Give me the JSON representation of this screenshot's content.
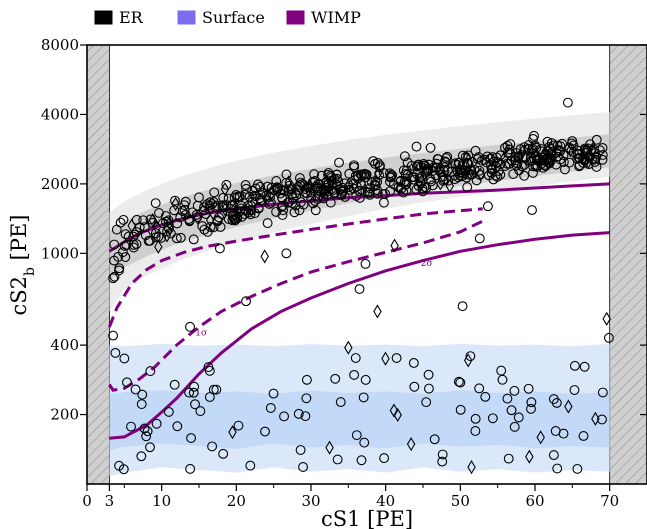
{
  "chart_data": {
    "type": "scatter",
    "xlabel": "cS1 [PE]",
    "ylabel_main": "cS2",
    "ylabel_sub": "b",
    "ylabel_unit": " [PE]",
    "xscale": "linear",
    "yscale": "log",
    "xlim": [
      0,
      75
    ],
    "ylim": [
      100,
      8000
    ],
    "x_ticks": [
      {
        "value": 0,
        "label": "0"
      },
      {
        "value": 3,
        "label": "3"
      },
      {
        "value": 10,
        "label": "10"
      },
      {
        "value": 20,
        "label": "20"
      },
      {
        "value": 30,
        "label": "30"
      },
      {
        "value": 40,
        "label": "40"
      },
      {
        "value": 50,
        "label": "50"
      },
      {
        "value": 60,
        "label": "60"
      },
      {
        "value": 70,
        "label": "70"
      }
    ],
    "y_ticks": [
      {
        "value": 200,
        "label": "200"
      },
      {
        "value": 400,
        "label": "400"
      },
      {
        "value": 1000,
        "label": "1000"
      },
      {
        "value": 2000,
        "label": "2000"
      },
      {
        "value": 4000,
        "label": "4000"
      },
      {
        "value": 8000,
        "label": "8000"
      }
    ],
    "excluded_regions": [
      [
        0,
        3
      ],
      [
        70,
        75
      ]
    ],
    "grid": false,
    "legend": {
      "placement": "top-left",
      "entries": [
        {
          "label": "ER",
          "color": "#000000"
        },
        {
          "label": "Surface",
          "color": "#7b6cf0"
        },
        {
          "label": "WIMP",
          "color": "#800080"
        }
      ]
    },
    "colors": {
      "er_band_outer": "#ececec",
      "er_band_inner": "#cfcfcf",
      "surface_band_outer": "#dbe8fa",
      "surface_band_inner": "#c2d9f7",
      "wimp": "#800080",
      "hatch": "#cfcfcf"
    },
    "er_band": {
      "x": [
        3,
        5,
        8,
        12,
        16,
        20,
        25,
        30,
        35,
        40,
        45,
        50,
        55,
        60,
        65,
        70
      ],
      "lo_outer": [
        560,
        700,
        800,
        920,
        1020,
        1110,
        1230,
        1340,
        1450,
        1560,
        1660,
        1760,
        1860,
        1950,
        2050,
        2150
      ],
      "lo_inner": [
        760,
        870,
        970,
        1100,
        1200,
        1300,
        1420,
        1530,
        1650,
        1760,
        1860,
        1960,
        2060,
        2160,
        2260,
        2360
      ],
      "hi_inner": [
        1250,
        1380,
        1540,
        1720,
        1880,
        2020,
        2180,
        2330,
        2470,
        2600,
        2720,
        2840,
        2950,
        3060,
        3170,
        3280
      ],
      "hi_outer": [
        1500,
        1680,
        1880,
        2120,
        2330,
        2520,
        2730,
        2920,
        3100,
        3260,
        3410,
        3560,
        3700,
        3840,
        3970,
        4100
      ]
    },
    "surface_band": {
      "x": [
        3,
        5,
        10,
        15,
        20,
        25,
        30,
        35,
        40,
        45,
        50,
        55,
        60,
        65,
        70
      ],
      "lo_outer": [
        108,
        112,
        118,
        115,
        112,
        118,
        113,
        116,
        112,
        118,
        113,
        116,
        112,
        115,
        113
      ],
      "lo_inner": [
        140,
        145,
        150,
        146,
        142,
        150,
        144,
        148,
        143,
        150,
        145,
        148,
        143,
        146,
        144
      ],
      "hi_inner": [
        245,
        250,
        255,
        248,
        252,
        246,
        254,
        248,
        252,
        246,
        255,
        248,
        252,
        246,
        250
      ],
      "hi_outer": [
        400,
        395,
        405,
        398,
        402,
        396,
        404,
        398,
        402,
        396,
        405,
        398,
        402,
        396,
        405
      ]
    },
    "series": [
      {
        "name": "WIMP",
        "style": "solid",
        "x": [
          3,
          5,
          7,
          10,
          13,
          16,
          20,
          25,
          30,
          35,
          40,
          45,
          50,
          55,
          60,
          65,
          70
        ],
        "y": [
          1020,
          1120,
          1220,
          1330,
          1420,
          1490,
          1560,
          1630,
          1690,
          1740,
          1780,
          1820,
          1850,
          1880,
          1920,
          1960,
          2000
        ]
      },
      {
        "name": "1σ",
        "style": "dashed",
        "x": [
          3,
          4,
          6,
          8,
          10,
          13,
          16,
          20,
          25,
          30,
          35,
          40,
          45,
          50,
          53
        ],
        "y": [
          480,
          580,
          740,
          850,
          930,
          1010,
          1070,
          1130,
          1200,
          1270,
          1340,
          1410,
          1480,
          1530,
          1560
        ]
      },
      {
        "name": "1σ",
        "style": "dashed",
        "x": [
          3,
          3.5,
          5,
          7,
          9,
          12,
          15,
          18,
          22,
          26,
          30,
          35,
          40,
          45,
          50,
          53
        ],
        "y": [
          270,
          255,
          260,
          285,
          320,
          400,
          480,
          560,
          650,
          740,
          830,
          920,
          1010,
          1110,
          1240,
          1380
        ]
      },
      {
        "name": "2σ",
        "style": "solid",
        "x": [
          3,
          5,
          8,
          10,
          12,
          15,
          18,
          22,
          26,
          30,
          35,
          40,
          45,
          50,
          55,
          60,
          65,
          70
        ],
        "y": [
          158,
          160,
          180,
          205,
          235,
          300,
          370,
          470,
          560,
          640,
          740,
          840,
          930,
          1020,
          1090,
          1150,
          1200,
          1230
        ]
      }
    ],
    "band_labels": [
      {
        "text": "1σ",
        "x": 15.3,
        "y": 440
      },
      {
        "text": "2σ",
        "x": 45.5,
        "y": 880
      }
    ],
    "marker_shapes": {
      "circle": "events",
      "diamond": "events"
    },
    "generator": {
      "er_circles_count": 560,
      "er_diamonds_count": 40,
      "surface_circles_count": 95,
      "surface_diamonds_count": 12,
      "seed": 73,
      "outliers": [
        {
          "x": 3.8,
          "y": 370,
          "m": "circle"
        },
        {
          "x": 5.0,
          "y": 350,
          "m": "circle"
        },
        {
          "x": 3.5,
          "y": 440,
          "m": "circle"
        },
        {
          "x": 3.5,
          "y": 780,
          "m": "circle"
        },
        {
          "x": 9.2,
          "y": 1650,
          "m": "circle"
        },
        {
          "x": 13.8,
          "y": 480,
          "m": "circle"
        },
        {
          "x": 21.3,
          "y": 620,
          "m": "circle"
        },
        {
          "x": 37.3,
          "y": 900,
          "m": "circle"
        },
        {
          "x": 38.9,
          "y": 560,
          "m": "diamond"
        },
        {
          "x": 36.5,
          "y": 700,
          "m": "circle"
        },
        {
          "x": 41.2,
          "y": 1080,
          "m": "diamond"
        },
        {
          "x": 50.3,
          "y": 590,
          "m": "circle"
        },
        {
          "x": 23.8,
          "y": 970,
          "m": "diamond"
        },
        {
          "x": 52.6,
          "y": 1160,
          "m": "circle"
        },
        {
          "x": 53.7,
          "y": 1600,
          "m": "circle"
        },
        {
          "x": 59.6,
          "y": 1540,
          "m": "circle"
        },
        {
          "x": 64.4,
          "y": 4500,
          "m": "circle"
        },
        {
          "x": 69.6,
          "y": 520,
          "m": "diamond"
        },
        {
          "x": 69.9,
          "y": 430,
          "m": "circle"
        },
        {
          "x": 26.7,
          "y": 1000,
          "m": "circle"
        },
        {
          "x": 17.8,
          "y": 1050,
          "m": "circle"
        },
        {
          "x": 35.0,
          "y": 390,
          "m": "diamond"
        },
        {
          "x": 4.3,
          "y": 120,
          "m": "circle"
        }
      ]
    }
  }
}
